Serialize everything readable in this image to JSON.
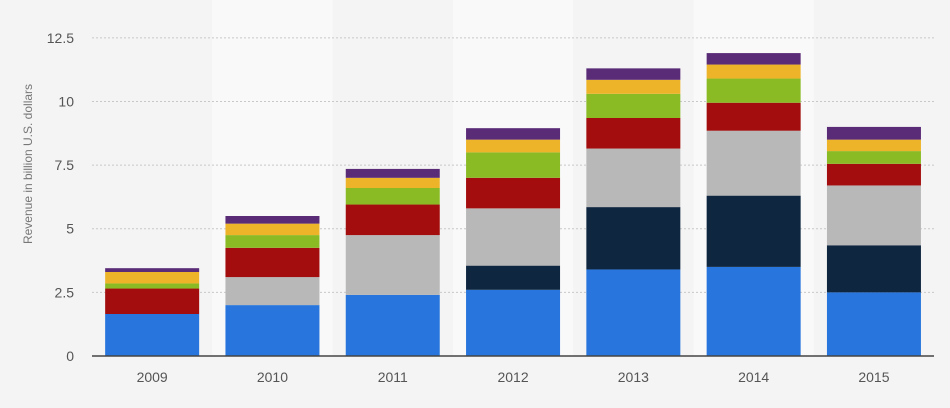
{
  "chart_data": {
    "type": "bar",
    "stacked": true,
    "title": "",
    "xlabel": "",
    "ylabel": "Revenue in billion U.S. dollars",
    "ylim": [
      0,
      13.2
    ],
    "y_ticks": [
      0,
      2.5,
      5,
      7.5,
      10,
      12.5
    ],
    "y_tick_labels": [
      "0",
      "2.5",
      "5",
      "7.5",
      "10",
      "12.5"
    ],
    "grid": true,
    "legend": "none",
    "categories": [
      "2009",
      "2010",
      "2011",
      "2012",
      "2013",
      "2014",
      "2015"
    ],
    "series": [
      {
        "color": "#2876dd",
        "values": [
          1.65,
          2.0,
          2.4,
          2.6,
          3.4,
          3.5,
          2.5
        ]
      },
      {
        "color": "#0f2640",
        "values": [
          0,
          0,
          0,
          0.95,
          2.45,
          2.8,
          1.85
        ]
      },
      {
        "color": "#b8b8b8",
        "values": [
          0,
          1.1,
          2.35,
          2.25,
          2.3,
          2.55,
          2.35
        ]
      },
      {
        "color": "#a30d0d",
        "values": [
          1.0,
          1.15,
          1.2,
          1.2,
          1.2,
          1.1,
          0.85
        ]
      },
      {
        "color": "#8abb25",
        "values": [
          0.2,
          0.5,
          0.65,
          1.0,
          0.95,
          0.95,
          0.5
        ]
      },
      {
        "color": "#eeb429",
        "values": [
          0.45,
          0.45,
          0.4,
          0.5,
          0.55,
          0.55,
          0.45
        ]
      },
      {
        "color": "#5a2b77",
        "values": [
          0.15,
          0.3,
          0.35,
          0.45,
          0.45,
          0.45,
          0.5
        ]
      }
    ]
  },
  "colors": {
    "background": "#f4f4f4",
    "band_alt": "#f9f9f9",
    "grid": "#c8c8c8",
    "axis": "#444444",
    "tick_text": "#555555",
    "ylabel_text": "#777777"
  }
}
